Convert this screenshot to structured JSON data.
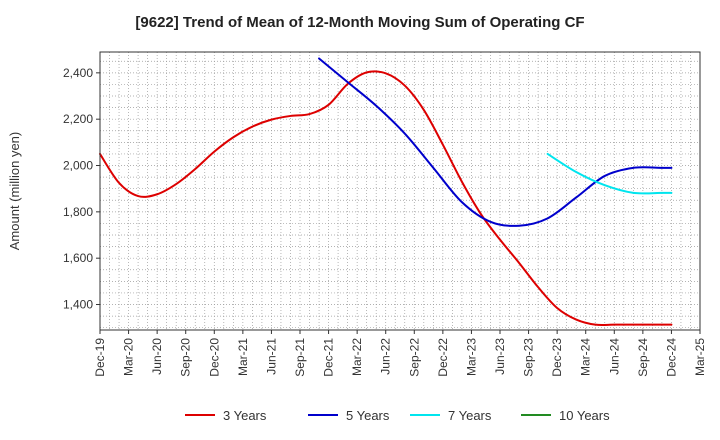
{
  "chart_data": {
    "type": "line",
    "title": "[9622]  Trend of Mean of 12-Month Moving Sum of Operating CF",
    "xlabel": "",
    "ylabel": "Amount (million yen)",
    "ylim": [
      1290,
      2490
    ],
    "yticks": [
      1400,
      1600,
      1800,
      2000,
      2200,
      2400
    ],
    "ytick_labels": [
      "1,400",
      "1,600",
      "1,800",
      "2,000",
      "2,200",
      "2,400"
    ],
    "x_tick_labels": [
      "Dec-19",
      "Mar-20",
      "Jun-20",
      "Sep-20",
      "Dec-20",
      "Mar-21",
      "Jun-21",
      "Sep-21",
      "Dec-21",
      "Mar-22",
      "Jun-22",
      "Sep-22",
      "Dec-22",
      "Mar-23",
      "Jun-23",
      "Sep-23",
      "Dec-23",
      "Mar-24",
      "Jun-24",
      "Sep-24",
      "Dec-24",
      "Mar-25"
    ],
    "x_unit": "months since Dec-19",
    "grid": true,
    "legend_position": "bottom",
    "series": [
      {
        "name": "3 Years",
        "color": "#dd0000",
        "x": [
          0,
          2,
          4,
          6,
          8,
          10,
          12,
          14,
          16,
          18,
          20,
          22,
          24,
          26,
          28,
          30,
          32,
          34,
          36,
          38,
          40,
          42,
          44,
          46,
          48,
          50,
          52,
          54,
          56,
          58,
          60
        ],
        "y": [
          2050,
          1925,
          1868,
          1876,
          1920,
          1985,
          2060,
          2122,
          2168,
          2198,
          2214,
          2222,
          2262,
          2352,
          2402,
          2398,
          2345,
          2240,
          2090,
          1930,
          1790,
          1680,
          1580,
          1475,
          1385,
          1335,
          1313,
          1313,
          1313,
          1313,
          1313
        ]
      },
      {
        "name": "5 Years",
        "color": "#0000cc",
        "x": [
          23,
          26,
          29,
          32,
          35,
          38,
          41,
          44,
          47,
          50,
          53,
          56,
          59,
          60
        ],
        "y": [
          2462,
          2360,
          2258,
          2138,
          1990,
          1842,
          1757,
          1740,
          1772,
          1862,
          1955,
          1990,
          1990,
          1990
        ]
      },
      {
        "name": "7 Years",
        "color": "#00e5ee",
        "x": [
          47,
          50,
          53,
          56,
          59,
          60
        ],
        "y": [
          2050,
          1972,
          1915,
          1882,
          1882,
          1882
        ]
      },
      {
        "name": "10 Years",
        "color": "#228b22",
        "x": [],
        "y": []
      }
    ]
  }
}
